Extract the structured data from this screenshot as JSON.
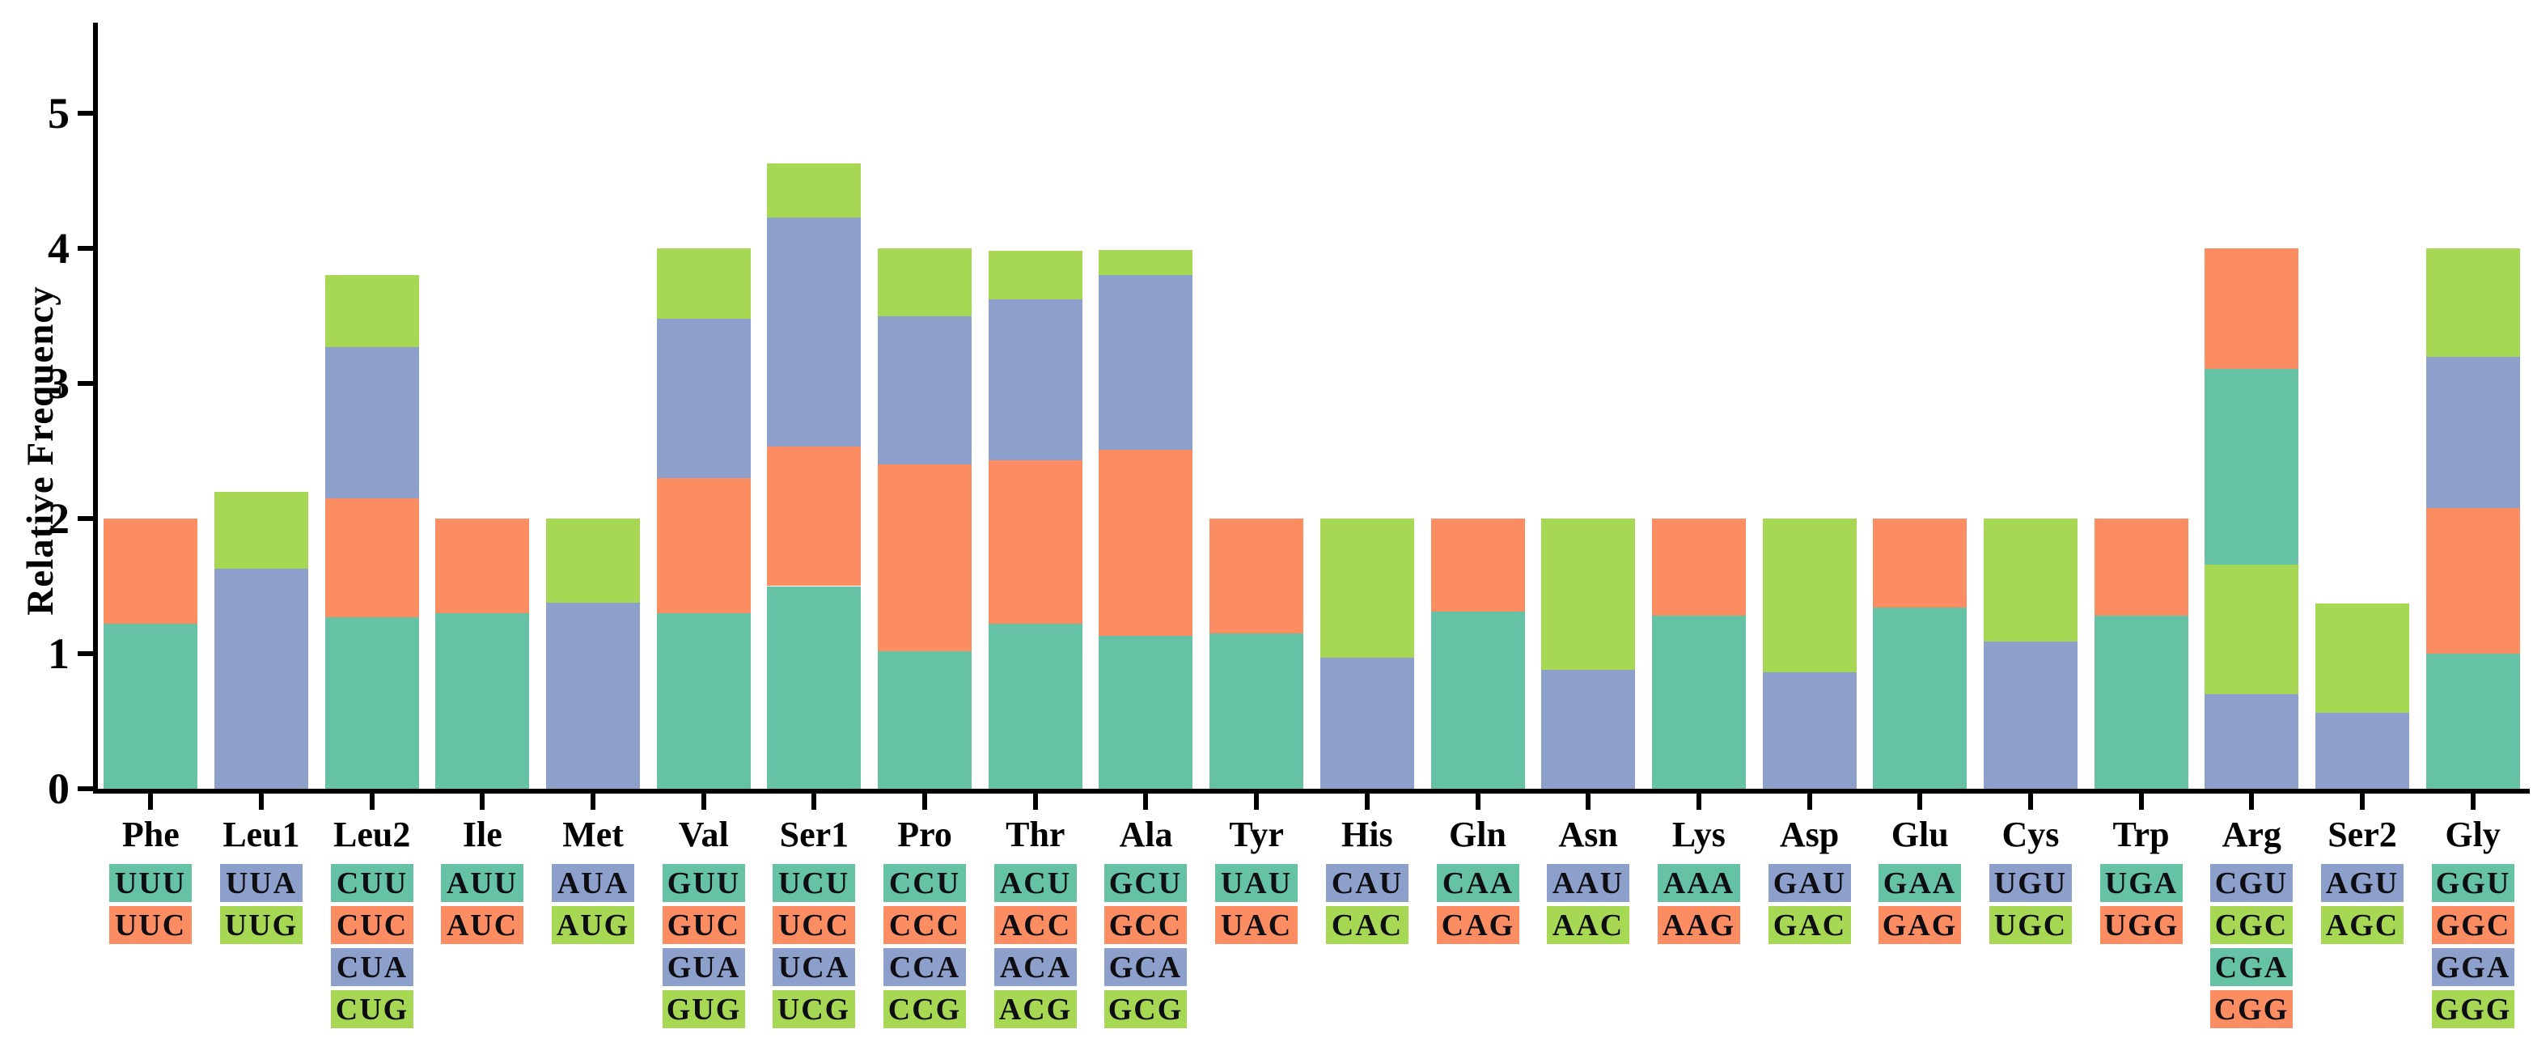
{
  "chart_data": {
    "type": "bar",
    "stacked": true,
    "title": "",
    "xlabel": "",
    "ylabel": "Relative Frequency",
    "ylim": [
      0,
      5.6
    ],
    "yticks": [
      0,
      1,
      2,
      3,
      4,
      5
    ],
    "grid": false,
    "legend_position": "codon chips below each category",
    "palette": {
      "teal": "#66C2A5",
      "orange": "#FC8D62",
      "blue": "#8DA0CB",
      "green": "#A6D854"
    },
    "categories": [
      "Phe",
      "Leu1",
      "Leu2",
      "Ile",
      "Met",
      "Val",
      "Ser1",
      "Pro",
      "Thr",
      "Ala",
      "Tyr",
      "His",
      "Gln",
      "Asn",
      "Lys",
      "Asp",
      "Glu",
      "Cys",
      "Trp",
      "Arg",
      "Ser2",
      "Gly"
    ],
    "groups": [
      {
        "label": "Phe",
        "codons": [
          {
            "codon": "UUU",
            "color": "teal",
            "value": 1.22
          },
          {
            "codon": "UUC",
            "color": "orange",
            "value": 0.78
          }
        ]
      },
      {
        "label": "Leu1",
        "codons": [
          {
            "codon": "UUA",
            "color": "blue",
            "value": 1.63
          },
          {
            "codon": "UUG",
            "color": "green",
            "value": 0.57
          }
        ]
      },
      {
        "label": "Leu2",
        "codons": [
          {
            "codon": "CUU",
            "color": "teal",
            "value": 1.27
          },
          {
            "codon": "CUC",
            "color": "orange",
            "value": 0.88
          },
          {
            "codon": "CUA",
            "color": "blue",
            "value": 1.12
          },
          {
            "codon": "CUG",
            "color": "green",
            "value": 0.53
          }
        ]
      },
      {
        "label": "Ile",
        "codons": [
          {
            "codon": "AUU",
            "color": "teal",
            "value": 1.3
          },
          {
            "codon": "AUC",
            "color": "orange",
            "value": 0.7
          }
        ]
      },
      {
        "label": "Met",
        "codons": [
          {
            "codon": "AUA",
            "color": "blue",
            "value": 1.38
          },
          {
            "codon": "AUG",
            "color": "green",
            "value": 0.62
          }
        ]
      },
      {
        "label": "Val",
        "codons": [
          {
            "codon": "GUU",
            "color": "teal",
            "value": 1.3
          },
          {
            "codon": "GUC",
            "color": "orange",
            "value": 1.0
          },
          {
            "codon": "GUA",
            "color": "blue",
            "value": 1.18
          },
          {
            "codon": "GUG",
            "color": "green",
            "value": 0.52
          }
        ]
      },
      {
        "label": "Ser1",
        "codons": [
          {
            "codon": "UCU",
            "color": "teal",
            "value": 1.5
          },
          {
            "codon": "UCC",
            "color": "orange",
            "value": 1.03
          },
          {
            "codon": "UCA",
            "color": "blue",
            "value": 1.7
          },
          {
            "codon": "UCG",
            "color": "green",
            "value": 0.4
          }
        ]
      },
      {
        "label": "Pro",
        "codons": [
          {
            "codon": "CCU",
            "color": "teal",
            "value": 1.02
          },
          {
            "codon": "CCC",
            "color": "orange",
            "value": 1.38
          },
          {
            "codon": "CCA",
            "color": "blue",
            "value": 1.1
          },
          {
            "codon": "CCG",
            "color": "green",
            "value": 0.5
          }
        ]
      },
      {
        "label": "Thr",
        "codons": [
          {
            "codon": "ACU",
            "color": "teal",
            "value": 1.22
          },
          {
            "codon": "ACC",
            "color": "orange",
            "value": 1.21
          },
          {
            "codon": "ACA",
            "color": "blue",
            "value": 1.19
          },
          {
            "codon": "ACG",
            "color": "green",
            "value": 0.36
          }
        ]
      },
      {
        "label": "Ala",
        "codons": [
          {
            "codon": "GCU",
            "color": "teal",
            "value": 1.13
          },
          {
            "codon": "GCC",
            "color": "orange",
            "value": 1.38
          },
          {
            "codon": "GCA",
            "color": "blue",
            "value": 1.29
          },
          {
            "codon": "GCG",
            "color": "green",
            "value": 0.19
          }
        ]
      },
      {
        "label": "Tyr",
        "codons": [
          {
            "codon": "UAU",
            "color": "teal",
            "value": 1.15
          },
          {
            "codon": "UAC",
            "color": "orange",
            "value": 0.85
          }
        ]
      },
      {
        "label": "His",
        "codons": [
          {
            "codon": "CAU",
            "color": "blue",
            "value": 0.97
          },
          {
            "codon": "CAC",
            "color": "green",
            "value": 1.03
          }
        ]
      },
      {
        "label": "Gln",
        "codons": [
          {
            "codon": "CAA",
            "color": "teal",
            "value": 1.31
          },
          {
            "codon": "CAG",
            "color": "orange",
            "value": 0.69
          }
        ]
      },
      {
        "label": "Asn",
        "codons": [
          {
            "codon": "AAU",
            "color": "blue",
            "value": 0.88
          },
          {
            "codon": "AAC",
            "color": "green",
            "value": 1.12
          }
        ]
      },
      {
        "label": "Lys",
        "codons": [
          {
            "codon": "AAA",
            "color": "teal",
            "value": 1.28
          },
          {
            "codon": "AAG",
            "color": "orange",
            "value": 0.72
          }
        ]
      },
      {
        "label": "Asp",
        "codons": [
          {
            "codon": "GAU",
            "color": "blue",
            "value": 0.86
          },
          {
            "codon": "GAC",
            "color": "green",
            "value": 1.14
          }
        ]
      },
      {
        "label": "Glu",
        "codons": [
          {
            "codon": "GAA",
            "color": "teal",
            "value": 1.34
          },
          {
            "codon": "GAG",
            "color": "orange",
            "value": 0.66
          }
        ]
      },
      {
        "label": "Cys",
        "codons": [
          {
            "codon": "UGU",
            "color": "blue",
            "value": 1.09
          },
          {
            "codon": "UGC",
            "color": "green",
            "value": 0.91
          }
        ]
      },
      {
        "label": "Trp",
        "codons": [
          {
            "codon": "UGA",
            "color": "teal",
            "value": 1.28
          },
          {
            "codon": "UGG",
            "color": "orange",
            "value": 0.72
          }
        ]
      },
      {
        "label": "Arg",
        "codons": [
          {
            "codon": "CGU",
            "color": "blue",
            "value": 0.7
          },
          {
            "codon": "CGC",
            "color": "green",
            "value": 0.96
          },
          {
            "codon": "CGA",
            "color": "teal",
            "value": 1.45
          },
          {
            "codon": "CGG",
            "color": "orange",
            "value": 0.89
          }
        ]
      },
      {
        "label": "Ser2",
        "codons": [
          {
            "codon": "AGU",
            "color": "blue",
            "value": 0.56
          },
          {
            "codon": "AGC",
            "color": "green",
            "value": 0.81
          }
        ]
      },
      {
        "label": "Gly",
        "codons": [
          {
            "codon": "GGU",
            "color": "teal",
            "value": 1.0
          },
          {
            "codon": "GGC",
            "color": "orange",
            "value": 1.08
          },
          {
            "codon": "GGA",
            "color": "blue",
            "value": 1.12
          },
          {
            "codon": "GGG",
            "color": "green",
            "value": 0.8
          }
        ]
      }
    ]
  }
}
